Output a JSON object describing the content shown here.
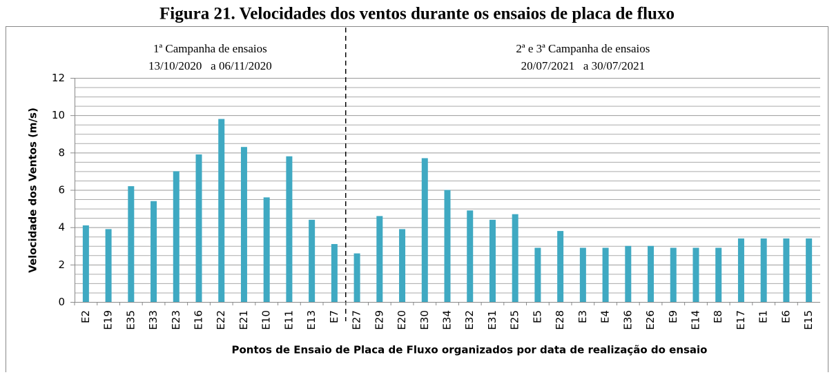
{
  "chart_data": {
    "type": "bar",
    "title": "Figura 21. Velocidades dos ventos durante os ensaios de placa de fluxo",
    "xlabel": "Pontos de Ensaio de Placa de Fluxo organizados por data de realização do ensaio",
    "ylabel": "Velocidade dos Ventos (m/s)",
    "color": "#3fa9c2",
    "ylim": [
      0,
      12
    ],
    "yticks": [
      0,
      2,
      4,
      6,
      8,
      10,
      12
    ],
    "minor_yticks": [
      0.5,
      1,
      1.5,
      2.5,
      3,
      3.5,
      4.5,
      5,
      5.5,
      6.5,
      7,
      7.5,
      8.5,
      9,
      9.5,
      10.5,
      11,
      11.5
    ],
    "grid": true,
    "groups": [
      {
        "title": "1ª Campanha de ensaios",
        "dates": "13/10/2020   a 06/11/2020",
        "categories": [
          "E2",
          "E19",
          "E35",
          "E33",
          "E23",
          "E16",
          "E22",
          "E21",
          "E10",
          "E11",
          "E13",
          "E7"
        ],
        "values": [
          4.1,
          3.9,
          6.2,
          5.4,
          7.0,
          7.9,
          9.8,
          8.3,
          5.6,
          7.8,
          4.4,
          3.1
        ]
      },
      {
        "title": "2ª e 3ª Campanha de ensaios",
        "dates": "20/07/2021   a 30/07/2021",
        "categories": [
          "E27",
          "E29",
          "E20",
          "E30",
          "E34",
          "E32",
          "E31",
          "E25",
          "E5",
          "E28",
          "E3",
          "E4",
          "E36",
          "E26",
          "E9",
          "E14",
          "E8",
          "E17",
          "E1",
          "E6",
          "E15"
        ],
        "values": [
          2.6,
          4.6,
          3.9,
          7.7,
          6.0,
          4.9,
          4.4,
          4.7,
          2.9,
          3.8,
          2.9,
          2.9,
          3.0,
          3.0,
          2.9,
          2.9,
          2.9,
          3.4,
          3.4,
          3.4,
          3.4
        ]
      }
    ]
  }
}
